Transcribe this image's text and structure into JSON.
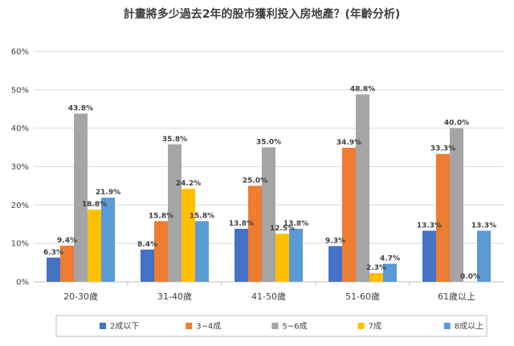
{
  "chart_data": {
    "type": "bar",
    "title": "計畫將多少過去2年的股市獲利投入房地產？(年齡分析)",
    "categories": [
      "20-30歲",
      "31-40歲",
      "41-50歲",
      "51-60歲",
      "61歲以上"
    ],
    "y_ticks": [
      "0%",
      "10%",
      "20%",
      "30%",
      "40%",
      "50%",
      "60%"
    ],
    "ylim": [
      0,
      60
    ],
    "grid": true,
    "legend_position": "bottom",
    "series": [
      {
        "name": "2成以下",
        "color": "#4472C4",
        "values": [
          6.3,
          8.4,
          13.8,
          9.3,
          13.3
        ],
        "labels": [
          "6.3%",
          "8.4%",
          "13.8%",
          "9.3%",
          "13.3%"
        ]
      },
      {
        "name": "3~4成",
        "color": "#ED7D31",
        "values": [
          9.4,
          15.8,
          25.0,
          34.9,
          33.3
        ],
        "labels": [
          "9.4%",
          "15.8%",
          "25.0%",
          "34.9%",
          "33.3%"
        ]
      },
      {
        "name": "5~6成",
        "color": "#A5A5A5",
        "values": [
          43.8,
          35.8,
          35.0,
          48.8,
          40.0
        ],
        "labels": [
          "43.8%",
          "35.8%",
          "35.0%",
          "48.8%",
          "40.0%"
        ]
      },
      {
        "name": "7成",
        "color": "#FFC000",
        "values": [
          18.8,
          24.2,
          12.5,
          2.3,
          0.0
        ],
        "labels": [
          "18.8%",
          "24.2%",
          "12.5%",
          "2.3%",
          "0.0%"
        ]
      },
      {
        "name": "8成以上",
        "color": "#5B9BD5",
        "values": [
          21.9,
          15.8,
          13.8,
          4.7,
          13.3
        ],
        "labels": [
          "21.9%",
          "15.8%",
          "13.8%",
          "4.7%",
          "13.3%"
        ]
      }
    ]
  }
}
